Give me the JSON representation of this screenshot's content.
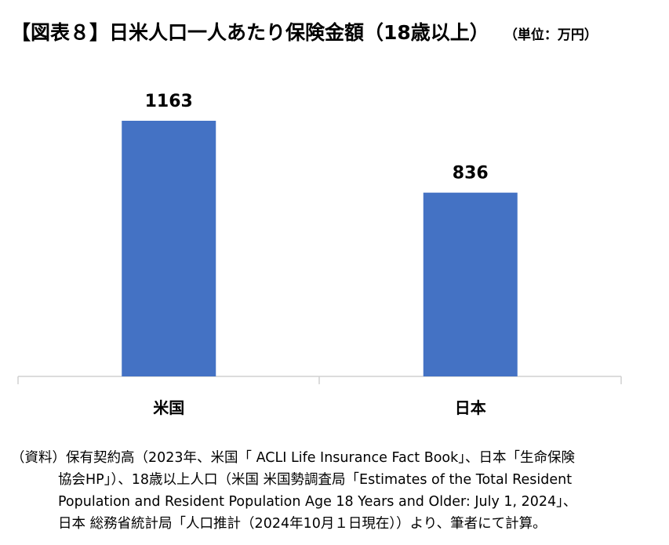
{
  "title": "【図表８】日米人口一人あたり保険金額（18歳以上）",
  "unit": "（単位：万円）",
  "chart_data": {
    "type": "bar",
    "categories": [
      "米国",
      "日本"
    ],
    "values": [
      1163,
      836
    ],
    "data_labels": [
      "1163",
      "836"
    ],
    "ylim": [
      0,
      1500
    ],
    "bar_color": "#4472C4",
    "grid": false,
    "legend": "none"
  },
  "source": {
    "lines": [
      "（資料）保有契約高（2023年、米国「 ACLI Life Insurance Fact Book」、日本「生命保険",
      "協会HP」）、18歳以上人口（米国 米国勢調査局「Estimates of the Total Resident",
      "Population and Resident Population Age 18 Years and Older: July 1, 2024」、",
      "日本 総務省統計局「人口推計（2024年10月１日現在））より、筆者にて計算。"
    ]
  }
}
